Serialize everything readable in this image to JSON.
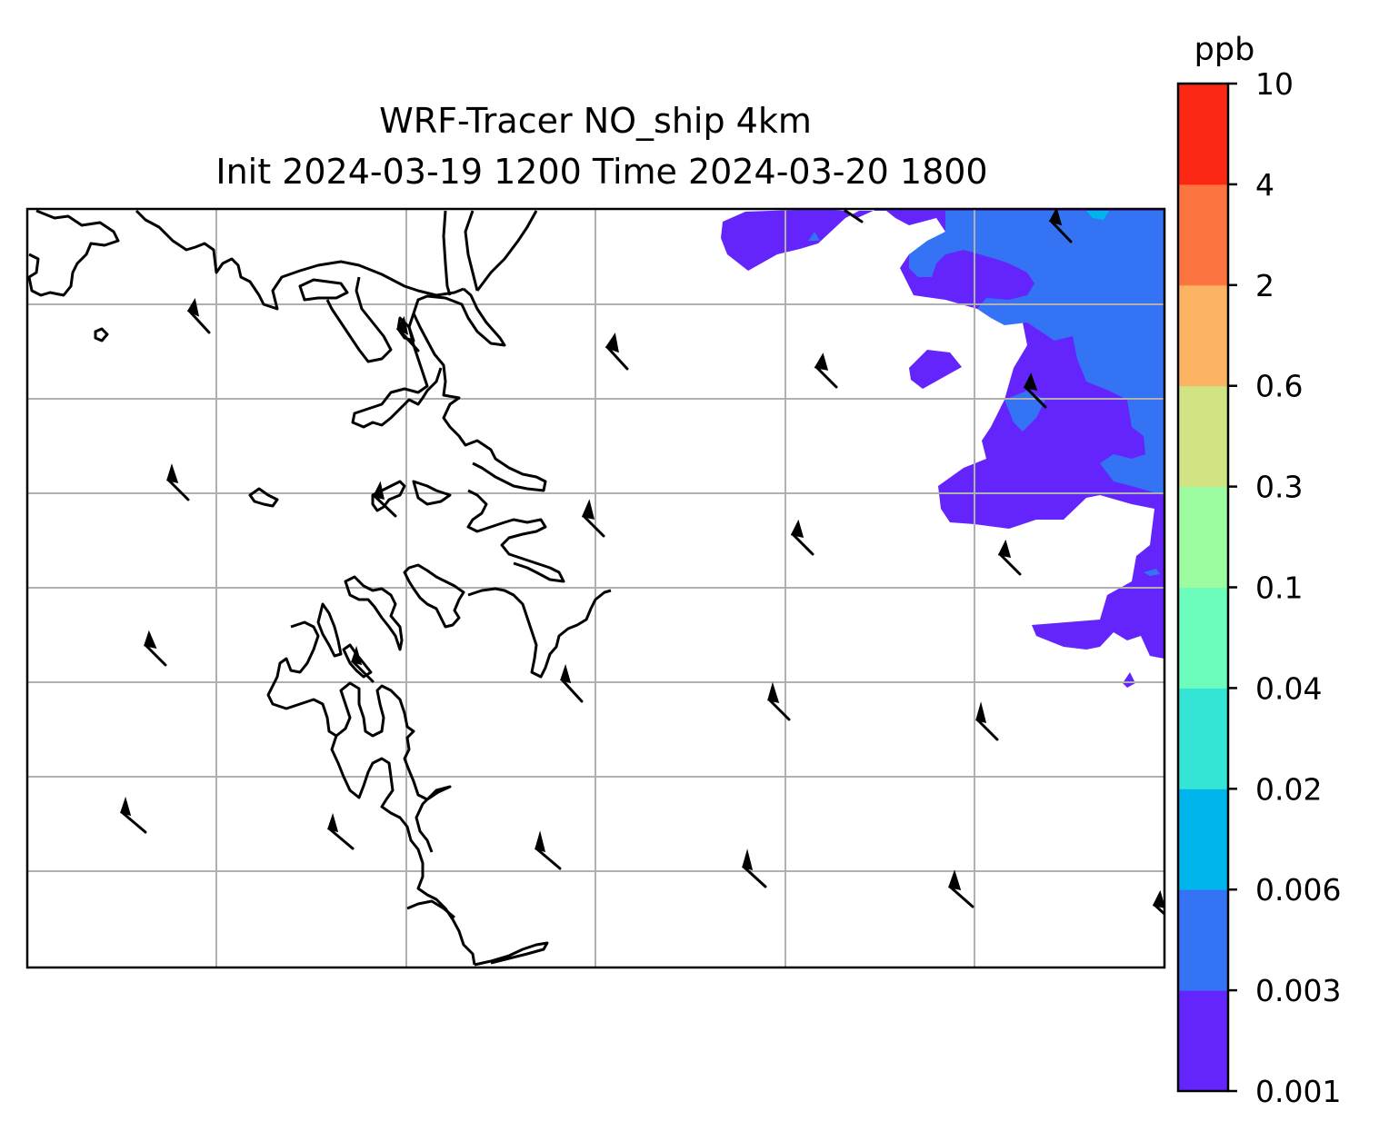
{
  "title": {
    "line1": "WRF-Tracer NO_ship 4km",
    "line2": "Init 2024-03-19 1200 Time 2024-03-20 1800"
  },
  "colorbar": {
    "unit": "ppb",
    "levels": [
      {
        "label": "0.001",
        "color": "#6424fc"
      },
      {
        "label": "0.003",
        "color": "#3474f4"
      },
      {
        "label": "0.006",
        "color": "#00b4ec"
      },
      {
        "label": "0.02",
        "color": "#34e4d4"
      },
      {
        "label": "0.04",
        "color": "#6cfcbc"
      },
      {
        "label": "0.1",
        "color": "#9cfca0"
      },
      {
        "label": "0.3",
        "color": "#d0e484"
      },
      {
        "label": "0.6",
        "color": "#fcb464"
      },
      {
        "label": "2",
        "color": "#fc7440"
      },
      {
        "label": "4",
        "color": "#fc2814"
      },
      {
        "label": "10",
        "color": null
      }
    ]
  },
  "map": {
    "gridlines": true,
    "coastline_color": "#000000",
    "grid_color": "#b0b0b0",
    "wind_barbs": true
  }
}
